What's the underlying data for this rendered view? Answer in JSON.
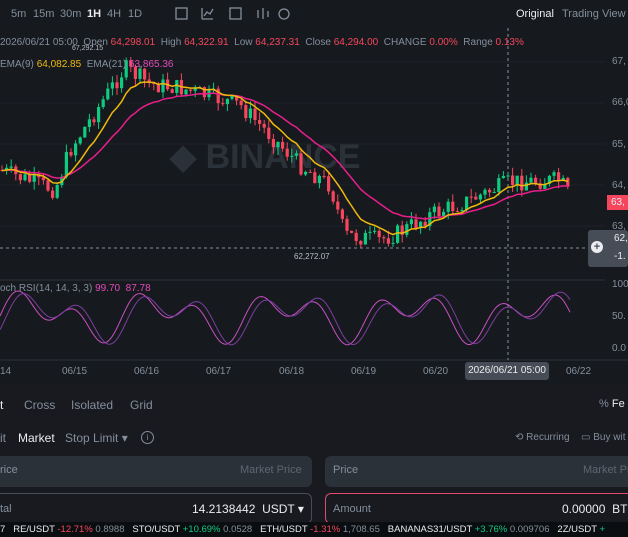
{
  "toolbar": {
    "intervals": [
      "5m",
      "15m",
      "30m",
      "1H",
      "4H",
      "1D"
    ],
    "views": [
      "Original",
      "Trading View"
    ]
  },
  "ohlc": {
    "date": "2026/06/21 05:00",
    "open_label": "Open",
    "open": "64,298.01",
    "high_label": "High",
    "high": "64,322.91",
    "low_label": "Low",
    "low": "64,237.31",
    "close_label": "Close",
    "close": "64,294.00",
    "change_label": "CHANGE",
    "change": "0.00%",
    "range_label": "Range",
    "range": "0.13%"
  },
  "ema": {
    "ema9_label": "EMA(9)",
    "ema9": "64,082.85",
    "ema21_label": "EMA(21)",
    "ema21": "63,865.36"
  },
  "price_axis": [
    "67,",
    "66,0",
    "65,",
    "64,",
    "63,"
  ],
  "price_tag": "63,",
  "crosshair_tag": [
    "62,",
    "-1."
  ],
  "annotations": {
    "high": "67,292.15",
    "low": "62,272.07"
  },
  "rsi": {
    "label": "och RSI(14, 14, 3, 3)",
    "k": "99.70",
    "d": "87.78",
    "axis": [
      "100",
      "50.",
      "0.0"
    ]
  },
  "dates": [
    "14",
    "06/15",
    "06/16",
    "06/17",
    "06/18",
    "06/19",
    "06/20",
    "06/22"
  ],
  "crosshair_date": "2026/06/21 05:00",
  "order_tabs": [
    "t",
    "Cross",
    "Isolated",
    "Grid"
  ],
  "fee": "Fe",
  "order_types": [
    "it",
    "Market",
    "Stop Limit"
  ],
  "recurring": "Recurring",
  "buy_with": "Buy wit",
  "inputs": {
    "left_price": "rice",
    "left_price_value": "Market Price",
    "right_price": "Price",
    "right_price_value": "Market Price",
    "left_total": "tal",
    "left_total_value": "14.2138442",
    "left_total_unit": "USDT",
    "right_amount": "Amount",
    "right_amount_value": "0.00000",
    "right_amount_unit": "BTC"
  },
  "ticker": [
    {
      "pair": "7"
    },
    {
      "pair": "RE/USDT",
      "change": "-12.71%",
      "price": "0.8988"
    },
    {
      "pair": "STO/USDT",
      "change": "+10.69%",
      "price": "0.0528"
    },
    {
      "pair": "ETH/USDT",
      "change": "-1.31%",
      "price": "1,708.65"
    },
    {
      "pair": "BANANAS31/USDT",
      "change": "+3.76%",
      "price": "0.009706"
    },
    {
      "pair": "2Z/USDT",
      "change": "+"
    }
  ]
}
